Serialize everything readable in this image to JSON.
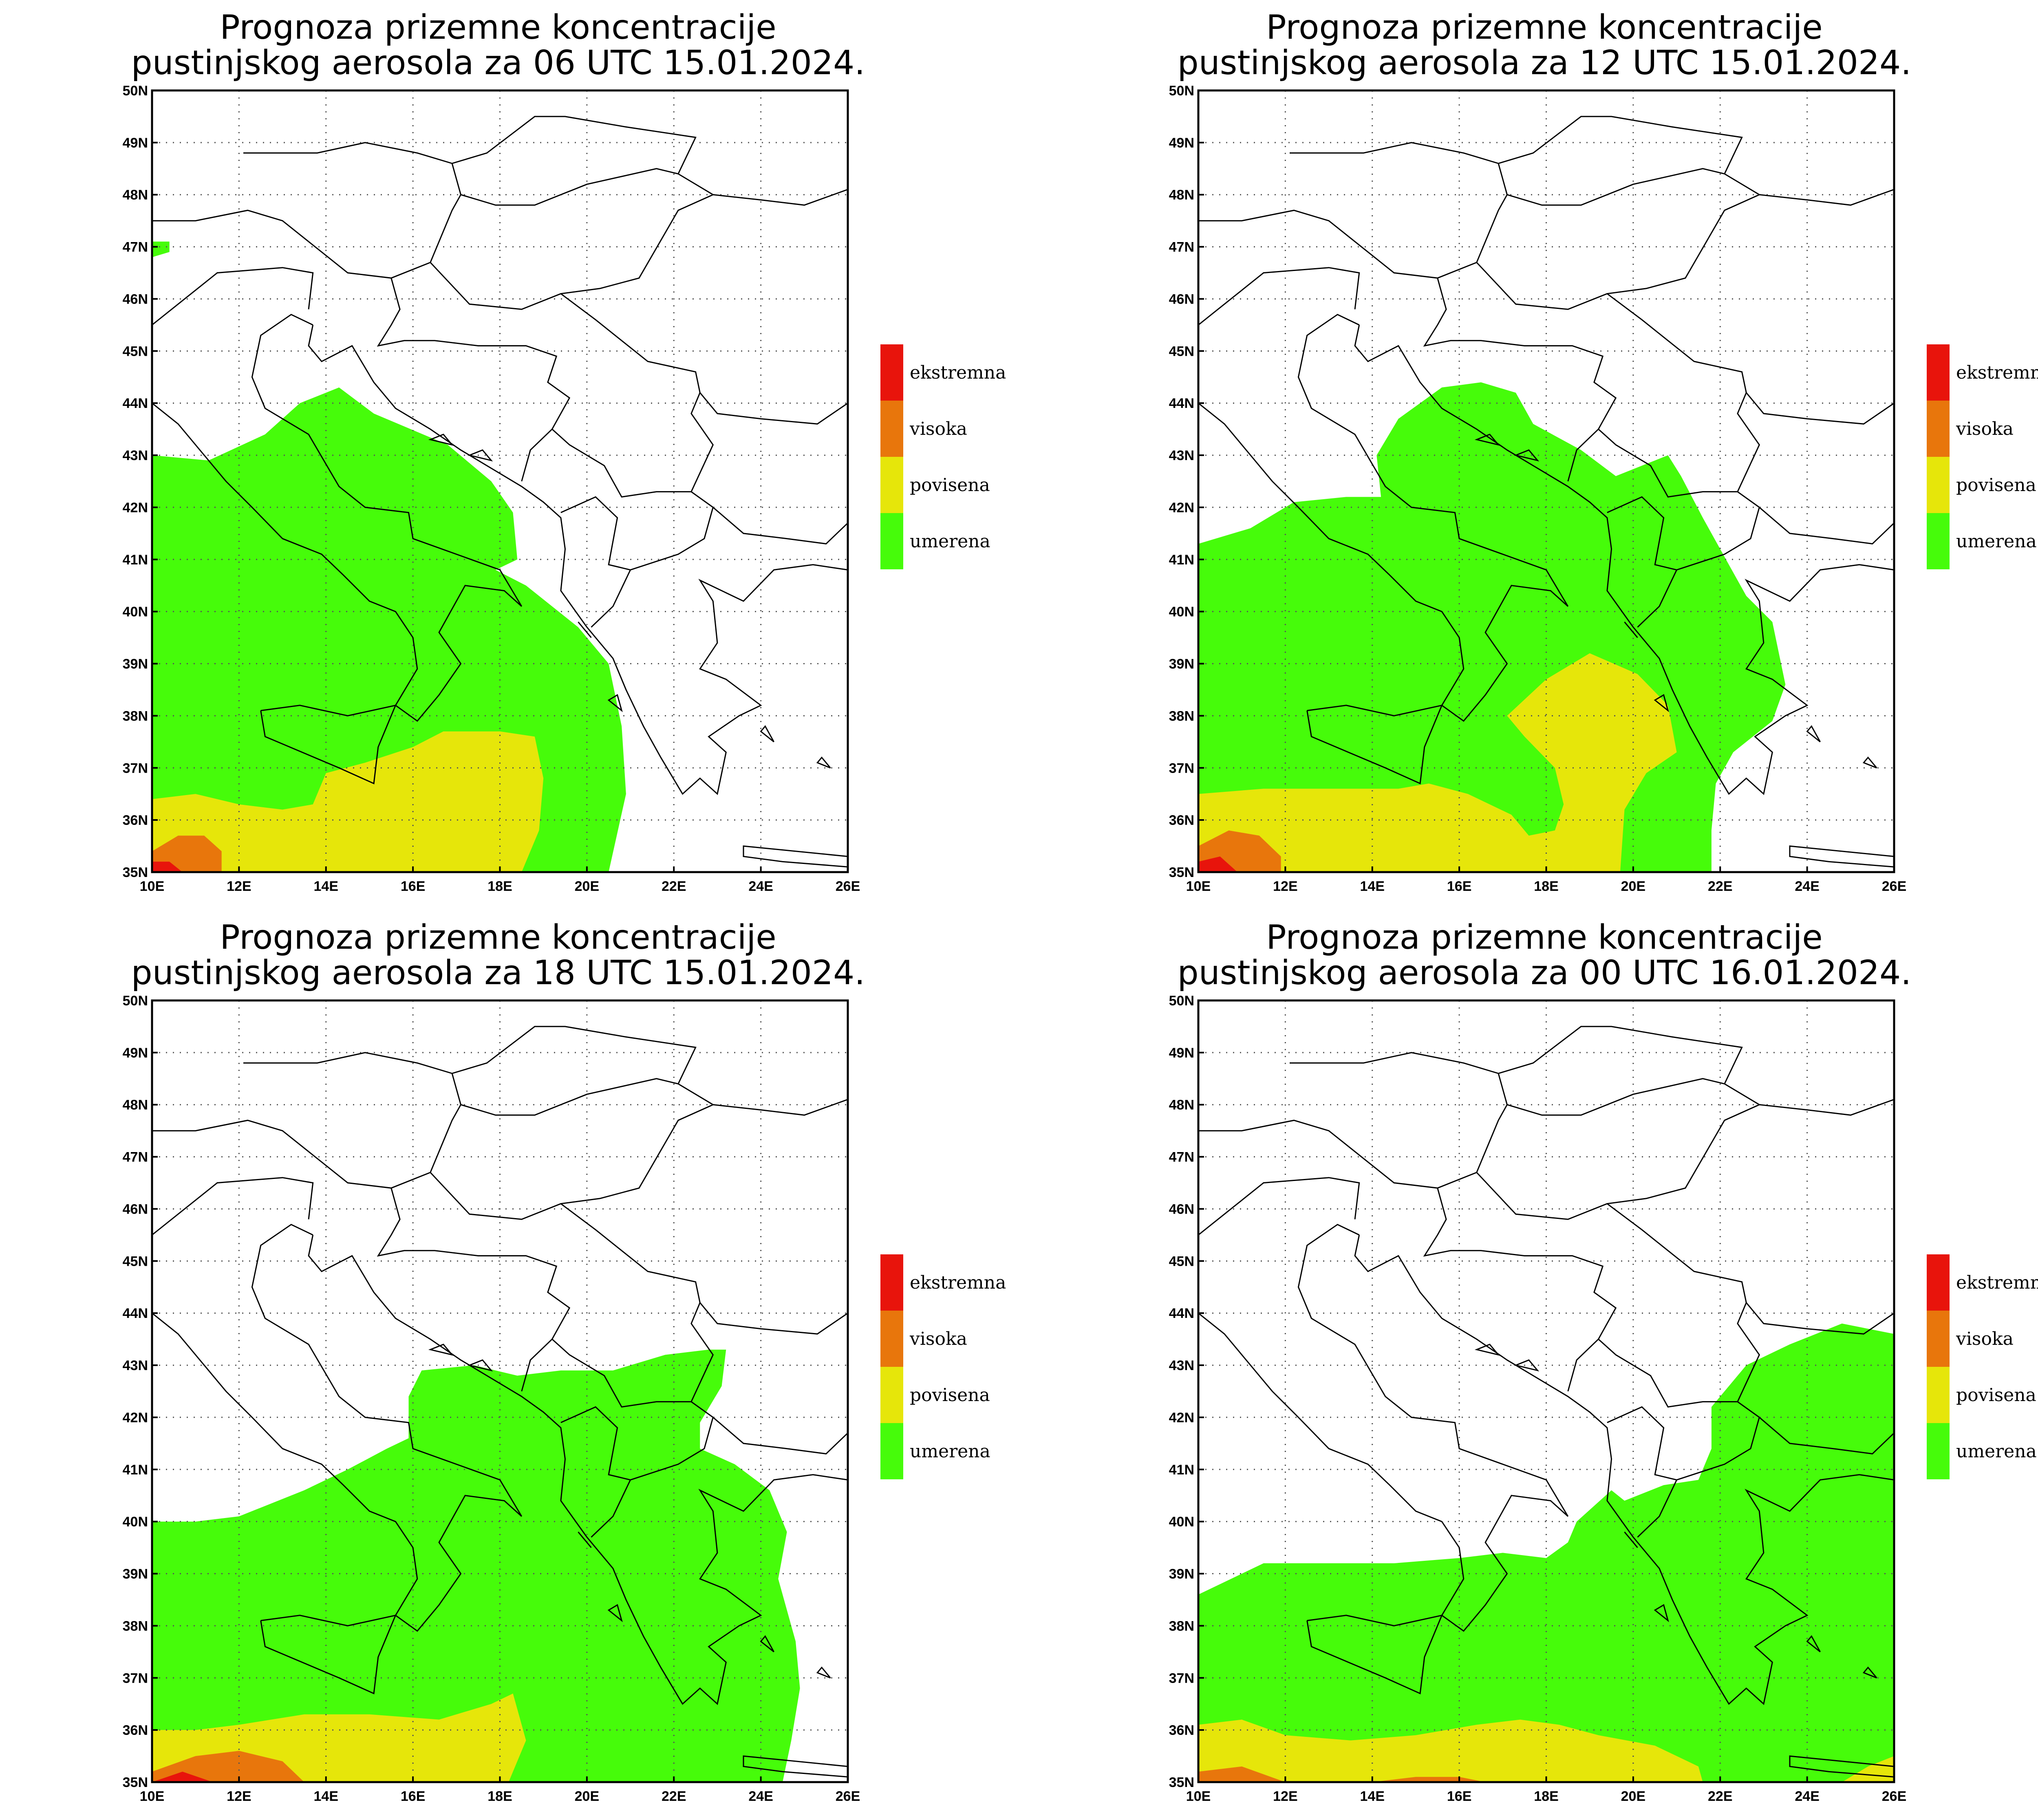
{
  "colors": {
    "ekstremna": "#e8140c",
    "visoka": "#e8760c",
    "povisena": "#e6e60a",
    "umerena": "#46fc0a",
    "border": "#000000",
    "grid": "#555555"
  },
  "axes": {
    "lat_labels": [
      "50N",
      "49N",
      "48N",
      "47N",
      "46N",
      "45N",
      "44N",
      "43N",
      "42N",
      "41N",
      "40N",
      "39N",
      "38N",
      "37N",
      "36N",
      "35N"
    ],
    "lon_labels": [
      "10E",
      "12E",
      "14E",
      "16E",
      "18E",
      "20E",
      "22E",
      "24E",
      "26E"
    ]
  },
  "legend": [
    {
      "key": "ekstremna",
      "label": "ekstremna",
      "color": "#e8140c"
    },
    {
      "key": "visoka",
      "label": "visoka",
      "color": "#e8760c"
    },
    {
      "key": "povisena",
      "label": "povisena",
      "color": "#e6e60a"
    },
    {
      "key": "umerena",
      "label": "umerena",
      "color": "#46fc0a"
    }
  ],
  "panels": [
    {
      "title_line1": "Prognoza prizemne koncentracije",
      "title_line2": "pustinjskog aerosola za 06 UTC 15.01.2024.",
      "time": "06 UTC 15.01.2024."
    },
    {
      "title_line1": "Prognoza prizemne koncentracije",
      "title_line2": "pustinjskog aerosola za 12 UTC 15.01.2024.",
      "time": "12 UTC 15.01.2024."
    },
    {
      "title_line1": "Prognoza prizemne koncentracije",
      "title_line2": "pustinjskog aerosola za 18 UTC 15.01.2024.",
      "time": "18 UTC 15.01.2024."
    },
    {
      "title_line1": "Prognoza prizemne koncentracije",
      "title_line2": "pustinjskog aerosola za 00 UTC 16.01.2024.",
      "time": "00 UTC 16.01.2024."
    }
  ]
}
